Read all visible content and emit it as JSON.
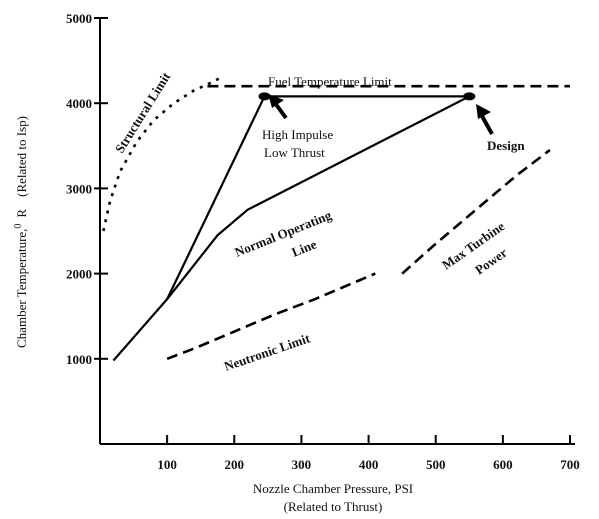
{
  "chart_data": {
    "type": "line",
    "xlabel": "Nozzle Chamber Pressure, PSI",
    "xlabel_sub": "(Related to Thrust)",
    "ylabel": "Chamber Temperature,",
    "ylabel_sup": "0",
    "ylabel_unit": "R",
    "ylabel_sub": "(Related to Isp)",
    "xlim": [
      0,
      700
    ],
    "ylim": [
      0,
      5000
    ],
    "xticks": [
      100,
      200,
      300,
      400,
      500,
      600,
      700
    ],
    "xtick_labels": [
      "100",
      "200",
      "300",
      "400",
      "500",
      "600",
      "700"
    ],
    "yticks": [
      1000,
      2000,
      3000,
      4000,
      5000
    ],
    "ytick_labels": [
      "1000",
      "2000",
      "3000",
      "4000",
      "5000"
    ],
    "grid": false,
    "series": [
      {
        "name": "Fuel Temperature Limit",
        "style": "dashed",
        "x": [
          160,
          230,
          300,
          400,
          500,
          600,
          700
        ],
        "y": [
          4200,
          4200,
          4200,
          4200,
          4200,
          4200,
          4200
        ]
      },
      {
        "name": "Structural Limit",
        "style": "dotted-dashed",
        "x": [
          5,
          15,
          30,
          55,
          80,
          110,
          140,
          160,
          180
        ],
        "y": [
          2500,
          2850,
          3200,
          3550,
          3800,
          4000,
          4150,
          4220,
          4300
        ]
      },
      {
        "name": "Normal Operating Line",
        "style": "solid",
        "x": [
          20,
          100,
          175,
          220,
          550
        ],
        "y": [
          980,
          1700,
          2450,
          2750,
          4080
        ]
      },
      {
        "name": "High Impulse Low Thrust",
        "style": "solid",
        "x": [
          100,
          245,
          550
        ],
        "y": [
          1700,
          4080,
          4080
        ]
      },
      {
        "name": "Neutronic Limit",
        "style": "dashed",
        "x": [
          100,
          140,
          200,
          260,
          320,
          380,
          410
        ],
        "y": [
          1000,
          1120,
          1320,
          1520,
          1700,
          1900,
          2000
        ]
      },
      {
        "name": "Max Turbine Power",
        "style": "dashed",
        "x": [
          450,
          500,
          560,
          620,
          670
        ],
        "y": [
          2000,
          2350,
          2750,
          3150,
          3450
        ]
      }
    ],
    "points": [
      {
        "name": "High Impulse Low Thrust point",
        "x": 245,
        "y": 4080
      },
      {
        "name": "Design point",
        "x": 550,
        "y": 4080
      }
    ],
    "annotations": {
      "fuel_temp_limit": "Fuel Temperature Limit",
      "structural_limit": "Structural Limit",
      "high_impulse_1": "High Impulse",
      "high_impulse_2": "Low Thrust",
      "design": "Design",
      "normal_op_1": "Normal Operating",
      "normal_op_2": "Line",
      "neutronic_limit": "Neutronic Limit",
      "max_turbine_1": "Max Turbine",
      "max_turbine_2": "Power"
    }
  }
}
